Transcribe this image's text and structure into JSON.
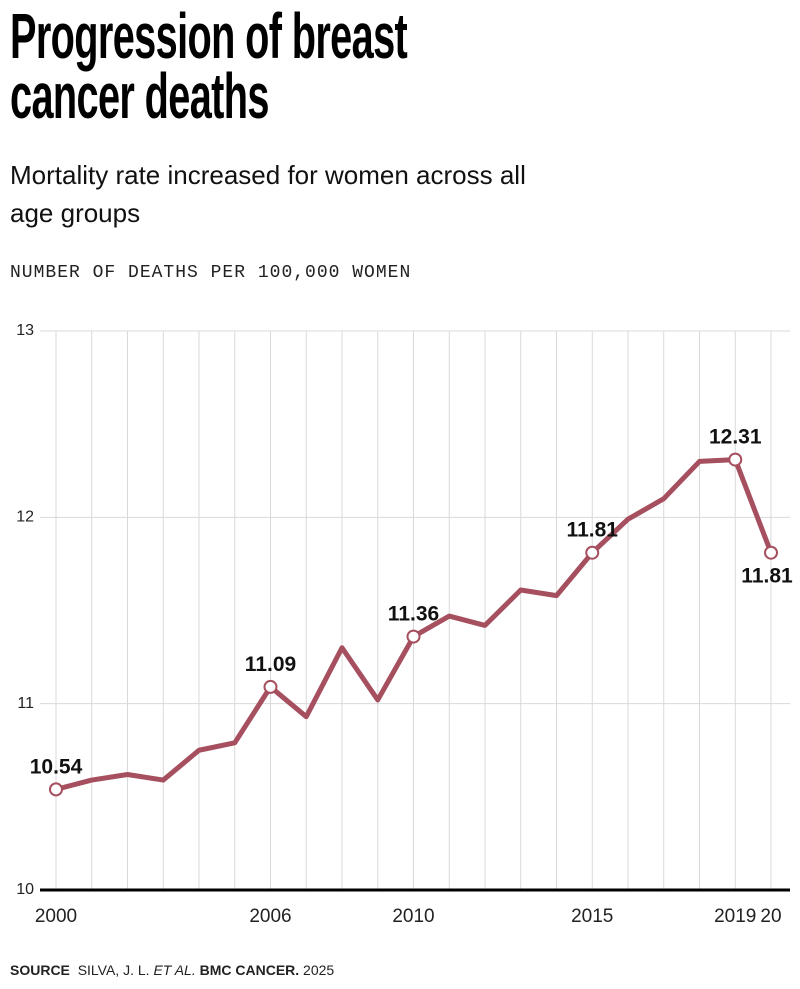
{
  "chart_data": {
    "type": "line",
    "title": "Progression of breast cancer deaths",
    "subtitle": "Mortality rate increased for women across all age groups",
    "y_axis_label": "NUMBER OF DEATHS PER 100,000 WOMEN",
    "x": [
      2000,
      2001,
      2002,
      2003,
      2004,
      2005,
      2006,
      2007,
      2008,
      2009,
      2010,
      2011,
      2012,
      2013,
      2014,
      2015,
      2016,
      2017,
      2018,
      2019,
      2020
    ],
    "series": [
      {
        "color": "#a54f5f",
        "values": [
          10.54,
          10.59,
          10.62,
          10.59,
          10.75,
          10.79,
          11.09,
          10.93,
          11.3,
          11.02,
          11.36,
          11.47,
          11.42,
          11.61,
          11.58,
          11.81,
          11.99,
          12.1,
          12.3,
          12.31,
          11.81
        ],
        "value_labels": [
          "10.54",
          null,
          null,
          null,
          null,
          null,
          "11.09",
          null,
          null,
          null,
          "11.36",
          null,
          null,
          null,
          null,
          "11.81",
          null,
          null,
          null,
          "12.31",
          "11.81"
        ]
      }
    ],
    "xlim": [
      2000,
      2020
    ],
    "xticks": [
      2000,
      2006,
      2010,
      2015,
      2019,
      {
        "value": 2020,
        "label": "20"
      }
    ],
    "ylim": [
      10,
      13
    ],
    "yticks": [
      10,
      11,
      12,
      13
    ],
    "grid": true,
    "source_label": "SOURCE",
    "source_parts": [
      "SILVA, J. L. ",
      "ET AL.",
      " BMC CANCER.",
      " 2025"
    ]
  }
}
